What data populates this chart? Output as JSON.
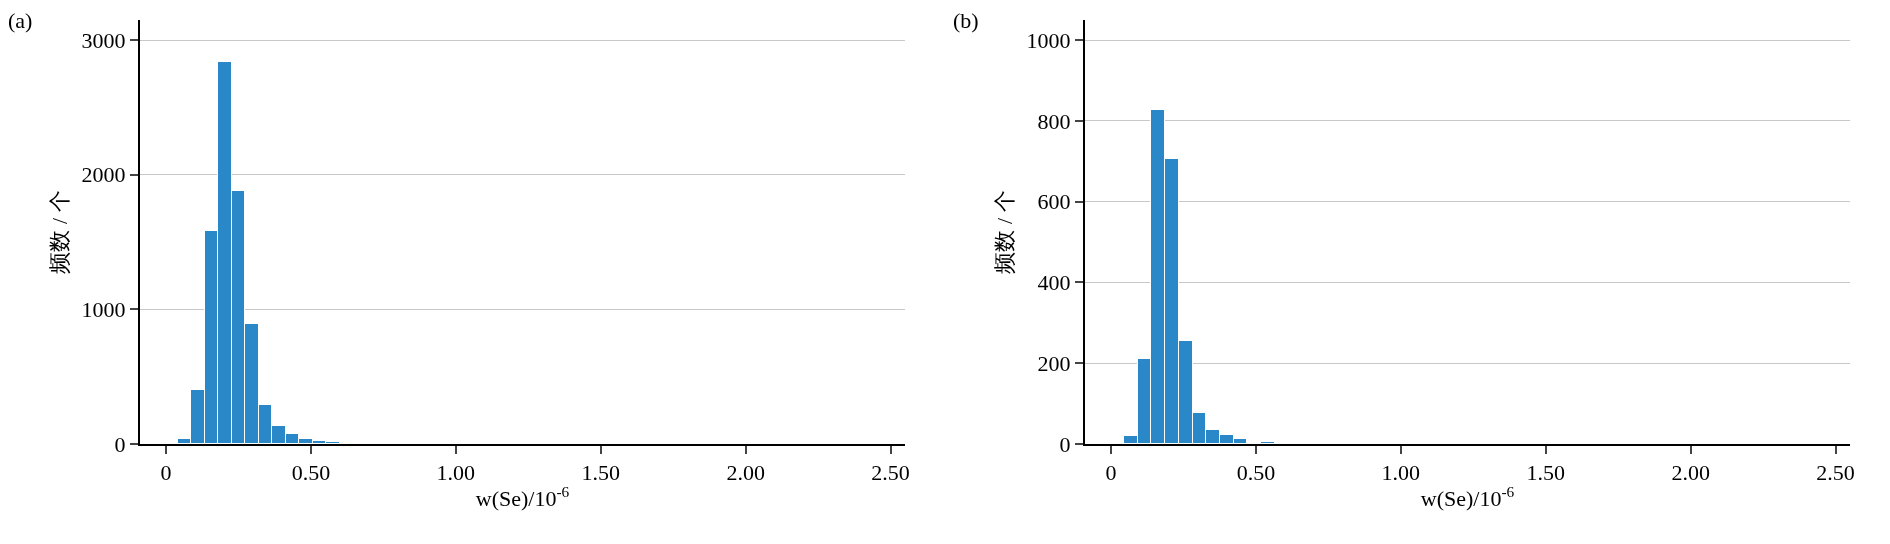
{
  "chart_data": [
    {
      "type": "histogram",
      "annotations": [
        "(a)"
      ],
      "xlabel": "w(Se)/10$^{-6}$",
      "ylabel": "频数 / 个",
      "color": "#2a87c8",
      "bins": [
        0.04,
        0.087,
        0.133,
        0.18,
        0.227,
        0.273,
        0.32,
        0.367,
        0.413,
        0.46,
        0.507,
        0.553,
        0.6,
        0.647
      ],
      "values": [
        38,
        399,
        1583,
        2838,
        1879,
        894,
        293,
        134,
        71,
        38,
        20,
        15,
        null
      ],
      "xlim": [
        -0.09,
        2.55
      ],
      "xticks": [
        {
          "value": 0,
          "label": "0"
        },
        {
          "value": 0.5,
          "label": "0.50"
        },
        {
          "value": 1,
          "label": "1.00"
        },
        {
          "value": 1.5,
          "label": "1.50"
        },
        {
          "value": 2,
          "label": "2.00"
        },
        {
          "value": 2.5,
          "label": "2.50"
        }
      ],
      "ylim": [
        0,
        3150
      ],
      "yticks": [
        0,
        1000,
        2000,
        3000
      ],
      "grid": "y"
    },
    {
      "type": "histogram",
      "annotations": [
        "(b)"
      ],
      "xlabel": "w(Se)/10$^{-6}$",
      "ylabel": "频数 / 个",
      "color": "#2a87c8",
      "bins": [
        0.045,
        0.092,
        0.139,
        0.187,
        0.234,
        0.281,
        0.328,
        0.376,
        0.423,
        0.47,
        0.517,
        0.565
      ],
      "values": [
        19,
        211,
        826,
        706,
        254,
        77,
        35,
        22,
        13,
        0,
        6
      ],
      "xlim": [
        -0.09,
        2.55
      ],
      "xticks": [
        {
          "value": 0,
          "label": "0"
        },
        {
          "value": 0.5,
          "label": "0.50"
        },
        {
          "value": 1,
          "label": "1.00"
        },
        {
          "value": 1.5,
          "label": "1.50"
        },
        {
          "value": 2,
          "label": "2.00"
        },
        {
          "value": 2.5,
          "label": "2.50"
        }
      ],
      "ylim": [
        0,
        1050
      ],
      "yticks": [
        0,
        200,
        400,
        600,
        800,
        1000
      ],
      "grid": "y"
    }
  ]
}
